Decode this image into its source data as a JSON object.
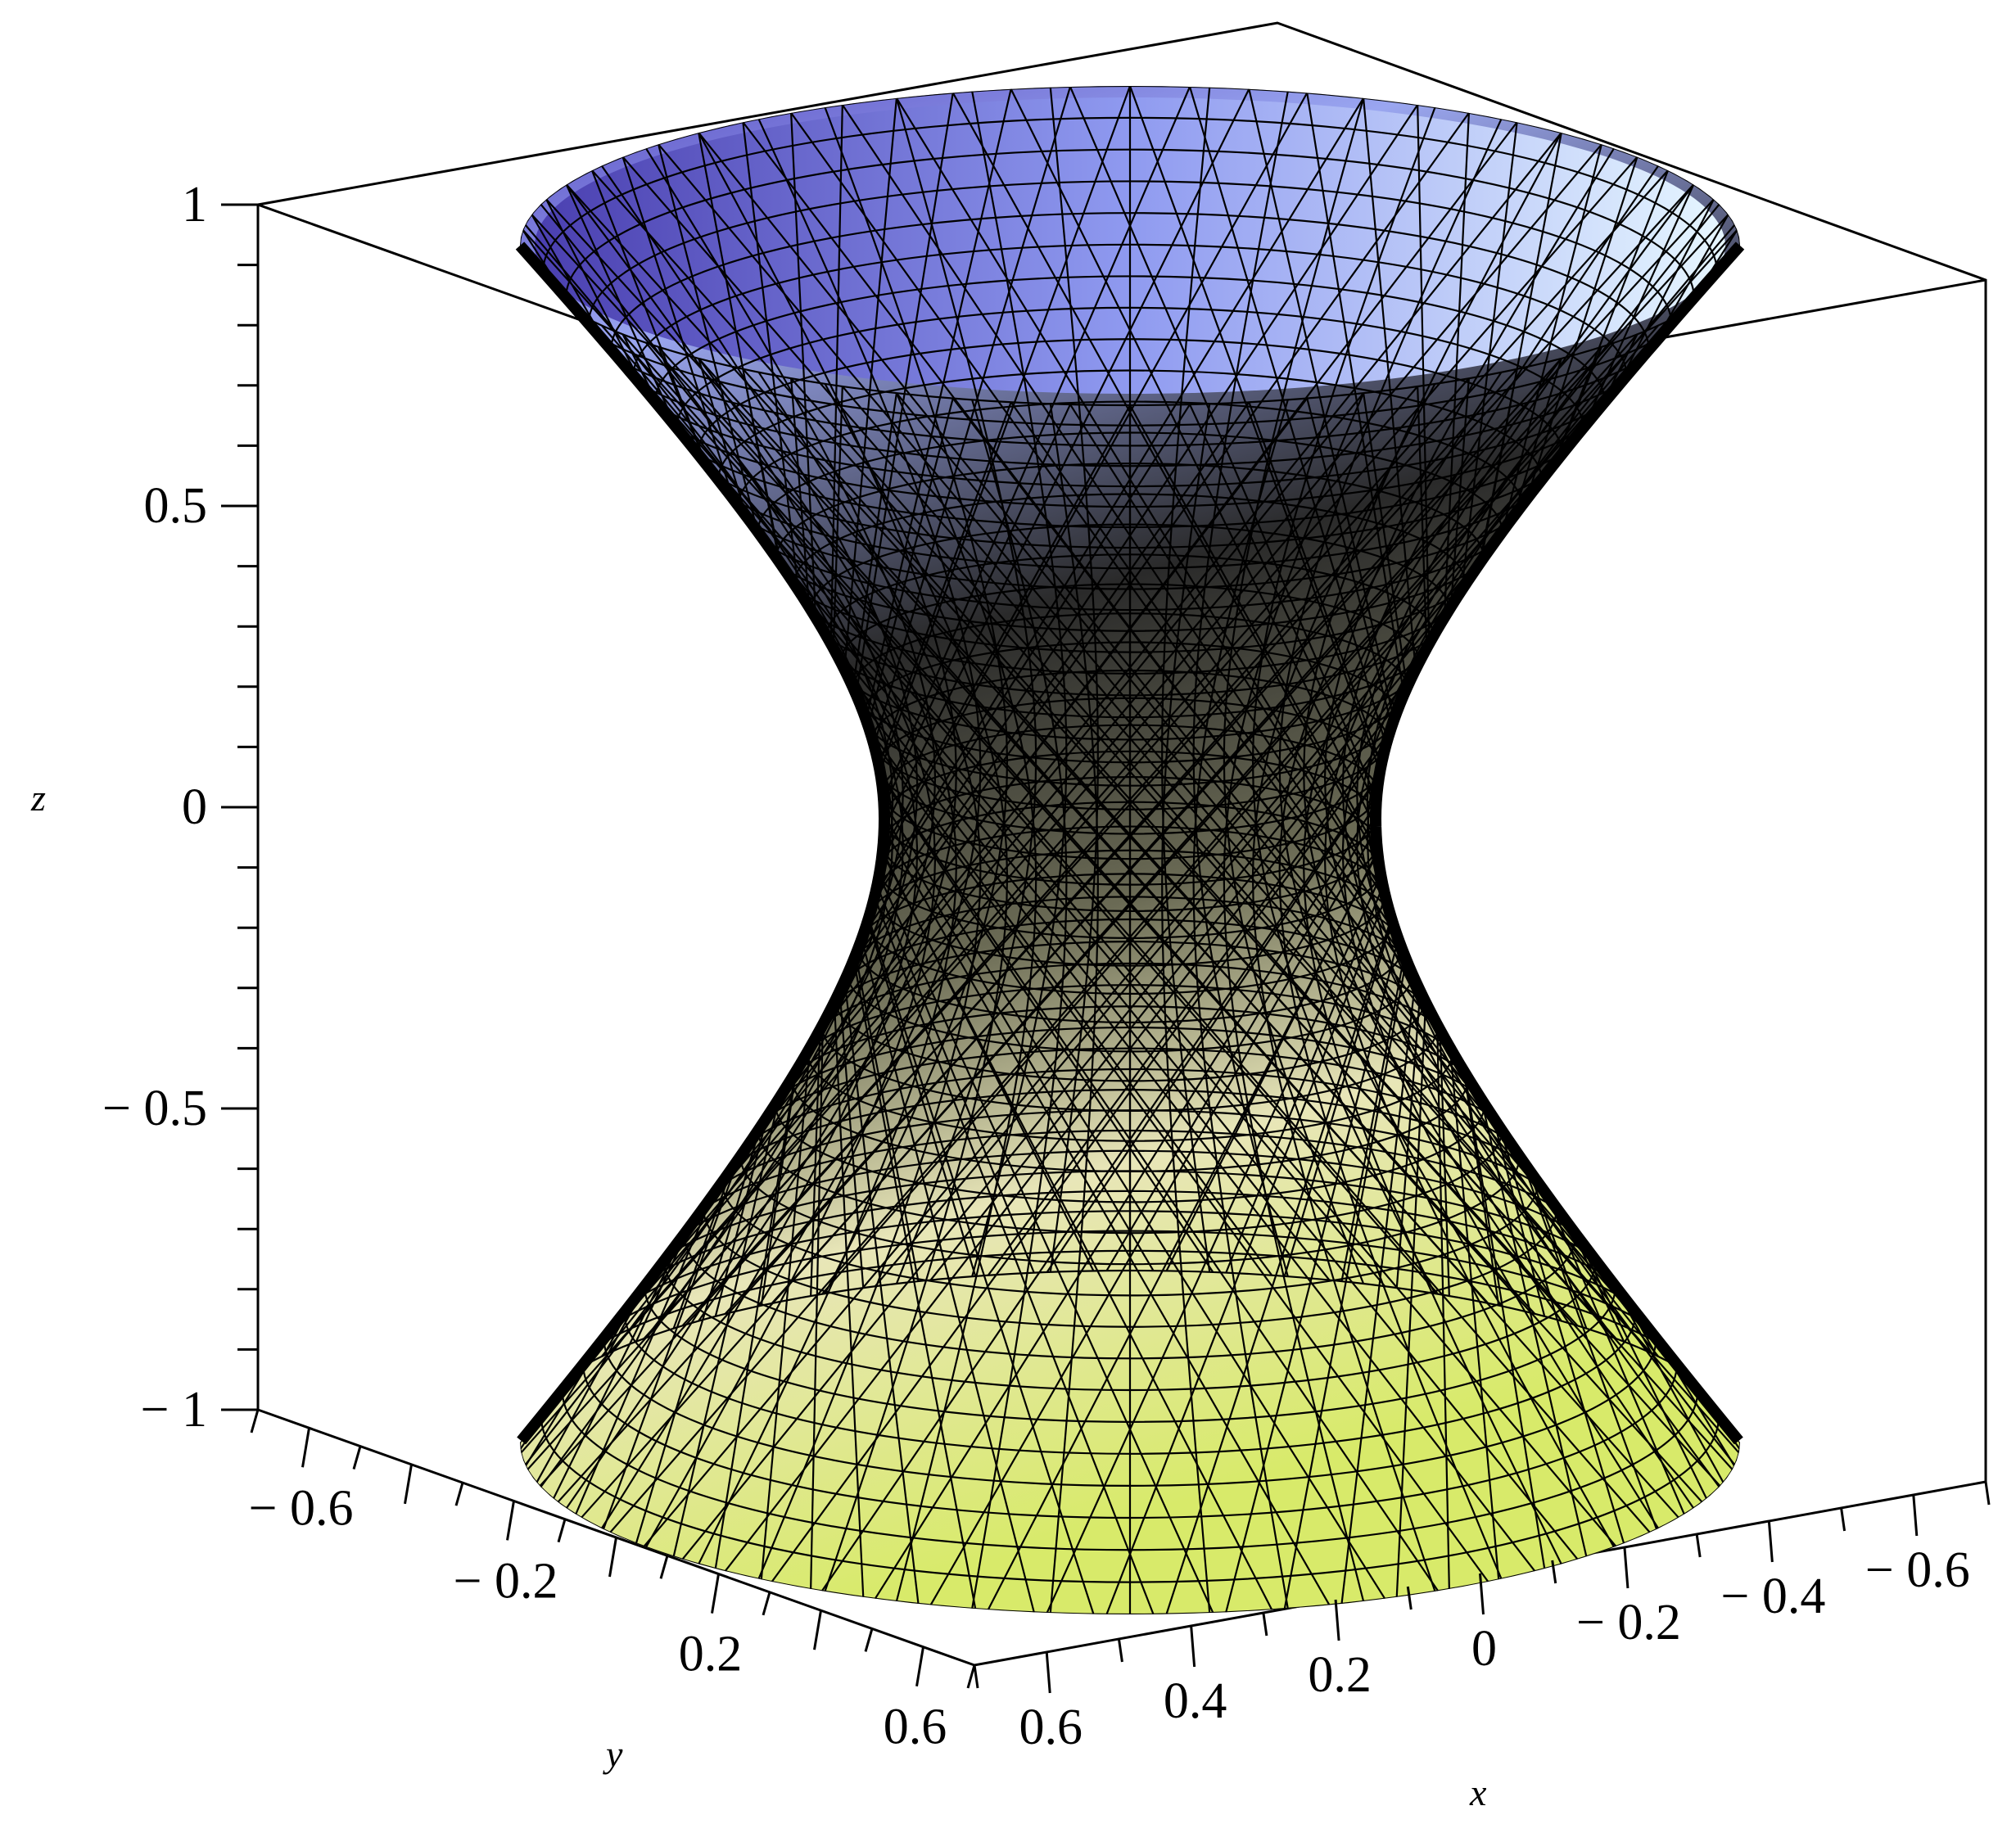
{
  "chart_data": {
    "type": "surface3d",
    "surface": "hyperboloid of one sheet",
    "x": {
      "label": "x",
      "range": [
        -0.7,
        0.7
      ],
      "ticks": [
        {
          "value": 0.6,
          "label": "0.6"
        },
        {
          "value": 0.4,
          "label": "0.4"
        },
        {
          "value": 0.2,
          "label": "0.2"
        },
        {
          "value": 0,
          "label": "0"
        },
        {
          "value": -0.2,
          "label": "− 0.2"
        },
        {
          "value": -0.4,
          "label": "− 0.4"
        },
        {
          "value": -0.6,
          "label": "− 0.6"
        }
      ]
    },
    "y": {
      "label": "y",
      "range": [
        -0.7,
        0.7
      ],
      "ticks": [
        {
          "value": -0.6,
          "label": "− 0.6"
        },
        {
          "value": -0.2,
          "label": "− 0.2"
        },
        {
          "value": 0.2,
          "label": "0.2"
        },
        {
          "value": 0.6,
          "label": "0.6"
        }
      ]
    },
    "z": {
      "label": "z",
      "range": [
        -1,
        1
      ],
      "ticks": [
        {
          "value": 1,
          "label": "1"
        },
        {
          "value": 0.5,
          "label": "0.5"
        },
        {
          "value": 0,
          "label": "0"
        },
        {
          "value": -0.5,
          "label": "− 0.5"
        },
        {
          "value": -1,
          "label": "− 1"
        }
      ]
    },
    "surface_params": {
      "waist_radius": 0.2,
      "top_radius": 0.7,
      "mesh": "triangulated"
    },
    "colors": {
      "top": "#7a72e6",
      "upper_right": "#d9f0ff",
      "middle": "#3a3a3a",
      "lower_left": "#fff4cc",
      "bottom": "#d4e870",
      "mesh": "#000000",
      "box": "#000000"
    }
  }
}
